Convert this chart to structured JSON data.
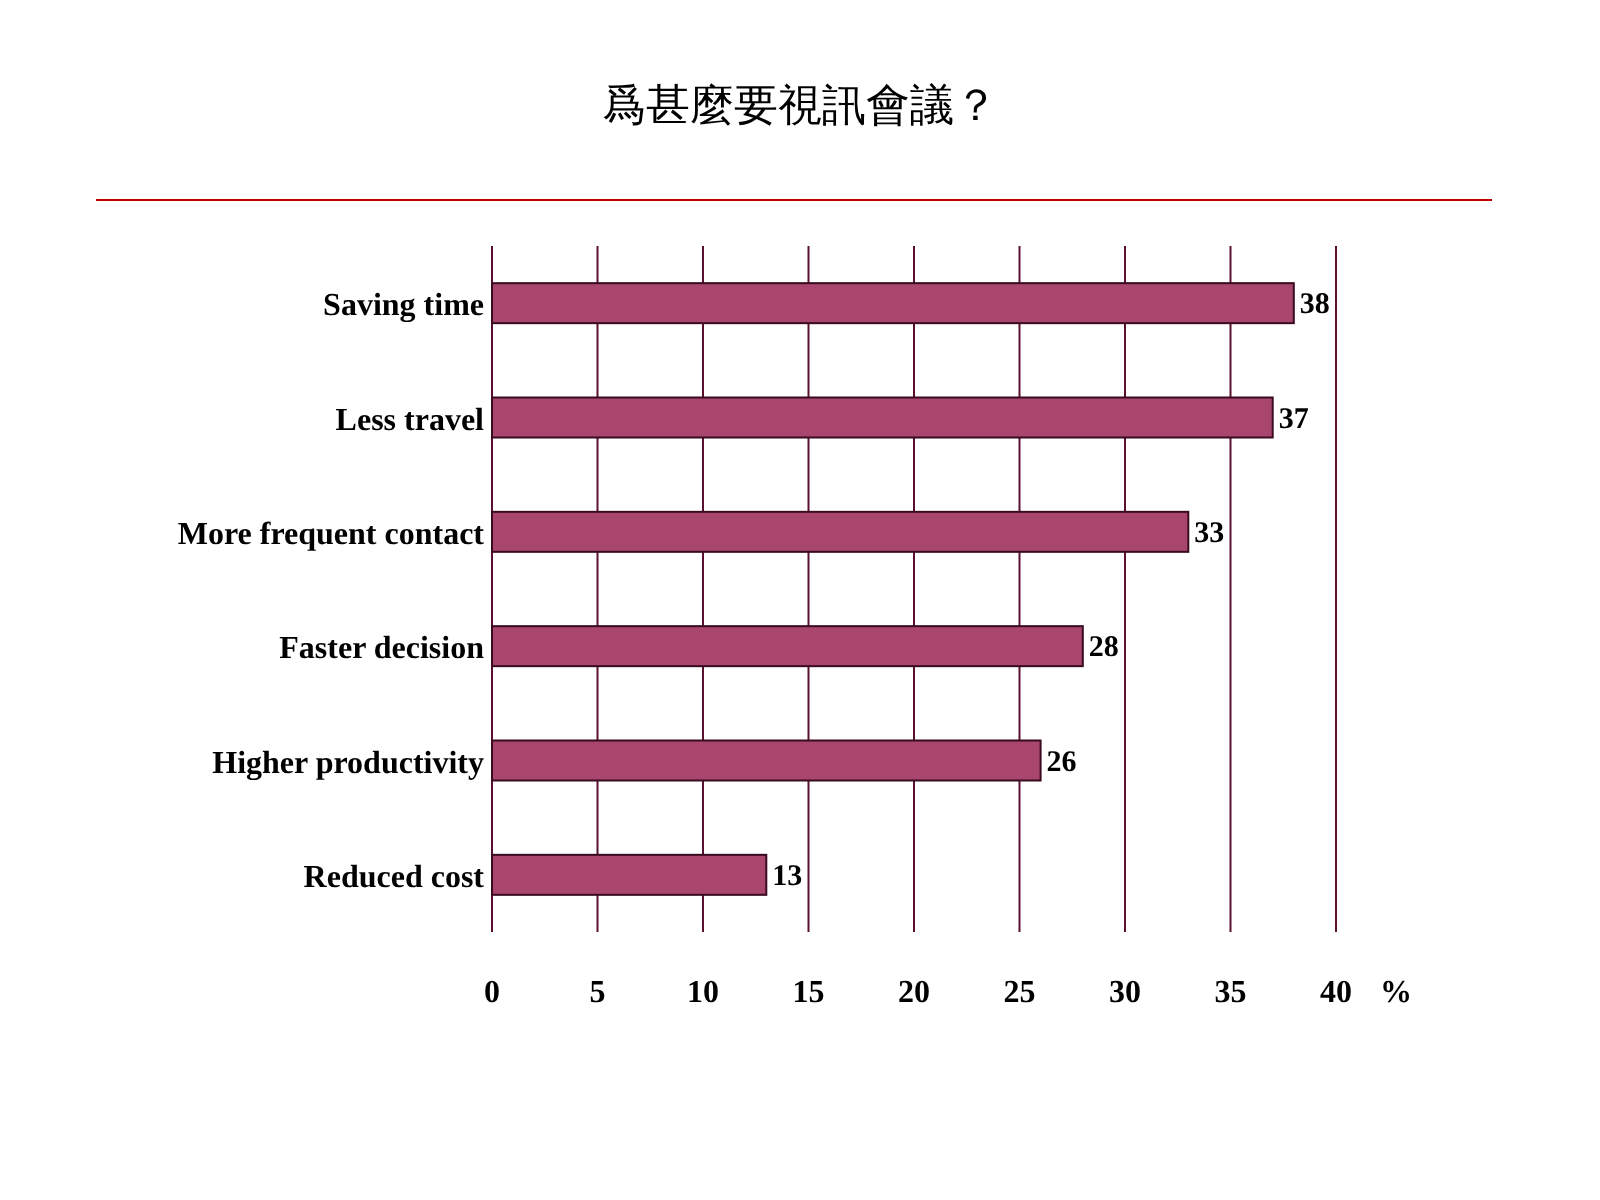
{
  "chart_data": {
    "type": "bar",
    "orientation": "horizontal",
    "title": "爲甚麼要視訊會議？",
    "xlabel": "%",
    "categories": [
      "Saving time",
      "Less travel",
      "More frequent contact",
      "Faster decision",
      "Higher productivity",
      "Reduced cost"
    ],
    "values": [
      38,
      37,
      33,
      28,
      26,
      13
    ],
    "color": "#a8466e",
    "xlim": [
      0,
      40
    ],
    "xticks": [
      0,
      5,
      10,
      15,
      20,
      25,
      30,
      35,
      40
    ],
    "grid": "x",
    "data_labels": true
  }
}
